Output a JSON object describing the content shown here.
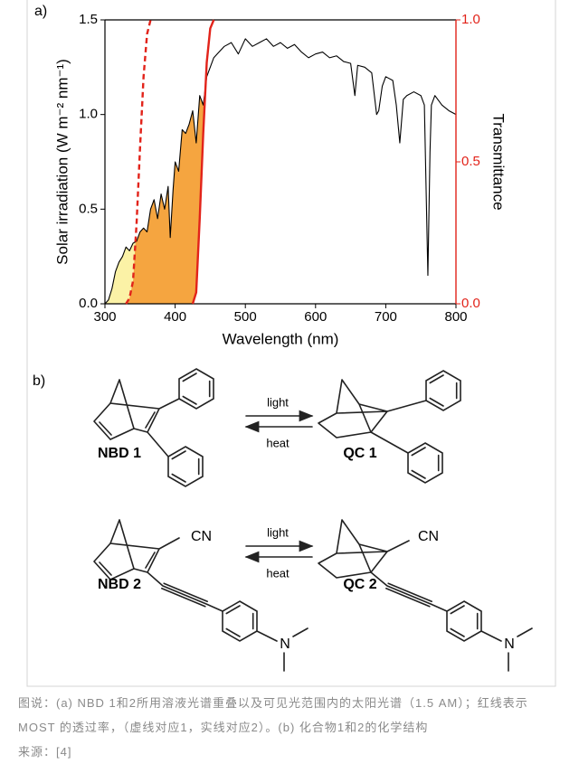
{
  "panels": {
    "a": "a)",
    "b": "b)"
  },
  "chart_data": {
    "type": "line",
    "xlabel": "Wavelength (nm)",
    "ylabel": "Solar irradiation (W m⁻² nm⁻¹)",
    "y2label": "Transmittance",
    "xlim": [
      300,
      800
    ],
    "xticks": [
      300,
      400,
      500,
      600,
      700,
      800
    ],
    "ylim": [
      0,
      1.5
    ],
    "yticks": [
      {
        "value": 0,
        "label": "0.0"
      },
      0.5,
      {
        "value": 1,
        "label": "1.0"
      },
      1.5
    ],
    "y2lim": [
      0,
      1
    ],
    "y2ticks": [
      {
        "value": 0,
        "label": "0.0"
      },
      0.5,
      {
        "value": 1,
        "label": "1.0"
      }
    ],
    "axis_color": "#000000",
    "y2_axis_color": "#e2231a",
    "fills": {
      "below_first_transmittance": "#fbf2a6",
      "between_transmittances": "#f5a540"
    },
    "series": [
      {
        "color": "#000000",
        "linestyle": "solid",
        "x": [
          300,
          305,
          310,
          315,
          320,
          325,
          330,
          335,
          340,
          345,
          350,
          355,
          360,
          365,
          370,
          375,
          380,
          385,
          390,
          393,
          397,
          400,
          405,
          410,
          415,
          420,
          425,
          430,
          435,
          440,
          445,
          450,
          455,
          460,
          470,
          480,
          490,
          500,
          510,
          520,
          530,
          540,
          550,
          560,
          570,
          580,
          590,
          600,
          610,
          620,
          630,
          640,
          650,
          656,
          660,
          670,
          680,
          687,
          690,
          695,
          700,
          710,
          715,
          720,
          725,
          730,
          740,
          750,
          755,
          760,
          763,
          765,
          770,
          780,
          790,
          800
        ],
        "values": [
          0.0,
          0.02,
          0.08,
          0.17,
          0.22,
          0.25,
          0.3,
          0.28,
          0.32,
          0.33,
          0.38,
          0.4,
          0.38,
          0.5,
          0.55,
          0.45,
          0.58,
          0.5,
          0.62,
          0.35,
          0.6,
          0.75,
          0.7,
          0.92,
          0.9,
          0.95,
          1.02,
          0.85,
          1.1,
          1.05,
          1.2,
          1.25,
          1.3,
          1.32,
          1.36,
          1.38,
          1.32,
          1.4,
          1.36,
          1.38,
          1.4,
          1.36,
          1.38,
          1.35,
          1.37,
          1.33,
          1.3,
          1.32,
          1.33,
          1.3,
          1.31,
          1.28,
          1.27,
          1.1,
          1.26,
          1.25,
          1.22,
          1.0,
          1.02,
          1.15,
          1.2,
          1.18,
          1.05,
          0.85,
          1.08,
          1.1,
          1.12,
          1.1,
          1.05,
          0.15,
          0.8,
          1.05,
          1.1,
          1.05,
          1.02,
          1.0
        ]
      },
      {
        "color": "#e2231a",
        "linestyle": "dashed",
        "axis": "y2",
        "x": [
          330,
          335,
          340,
          345,
          350,
          355,
          360,
          365
        ],
        "values": [
          0,
          0.02,
          0.08,
          0.28,
          0.55,
          0.8,
          0.95,
          1.0
        ]
      },
      {
        "color": "#e2231a",
        "linestyle": "solid",
        "axis": "y2",
        "x": [
          425,
          430,
          435,
          440,
          445,
          450,
          455
        ],
        "values": [
          0,
          0.04,
          0.3,
          0.6,
          0.85,
          0.97,
          1.0
        ]
      }
    ]
  },
  "scheme": {
    "reactions": [
      {
        "reactant": "NBD 1",
        "product": "QC 1",
        "forward": "light",
        "reverse": "heat"
      },
      {
        "reactant": "NBD 2",
        "product": "QC 2",
        "forward": "light",
        "reverse": "heat",
        "reactant_cyano": "CN",
        "product_cyano": "CN",
        "reactant_amine": "N",
        "product_amine": "N"
      }
    ]
  },
  "caption": {
    "text": "图说：(a) NBD 1和2所用溶液光谱重叠以及可见光范围内的太阳光谱（1.5 AM）；红线表示 MOST 的透过率，（虚线对应1，实线对应2）。(b) 化合物1和2的化学结构",
    "source": "来源：[4]"
  }
}
